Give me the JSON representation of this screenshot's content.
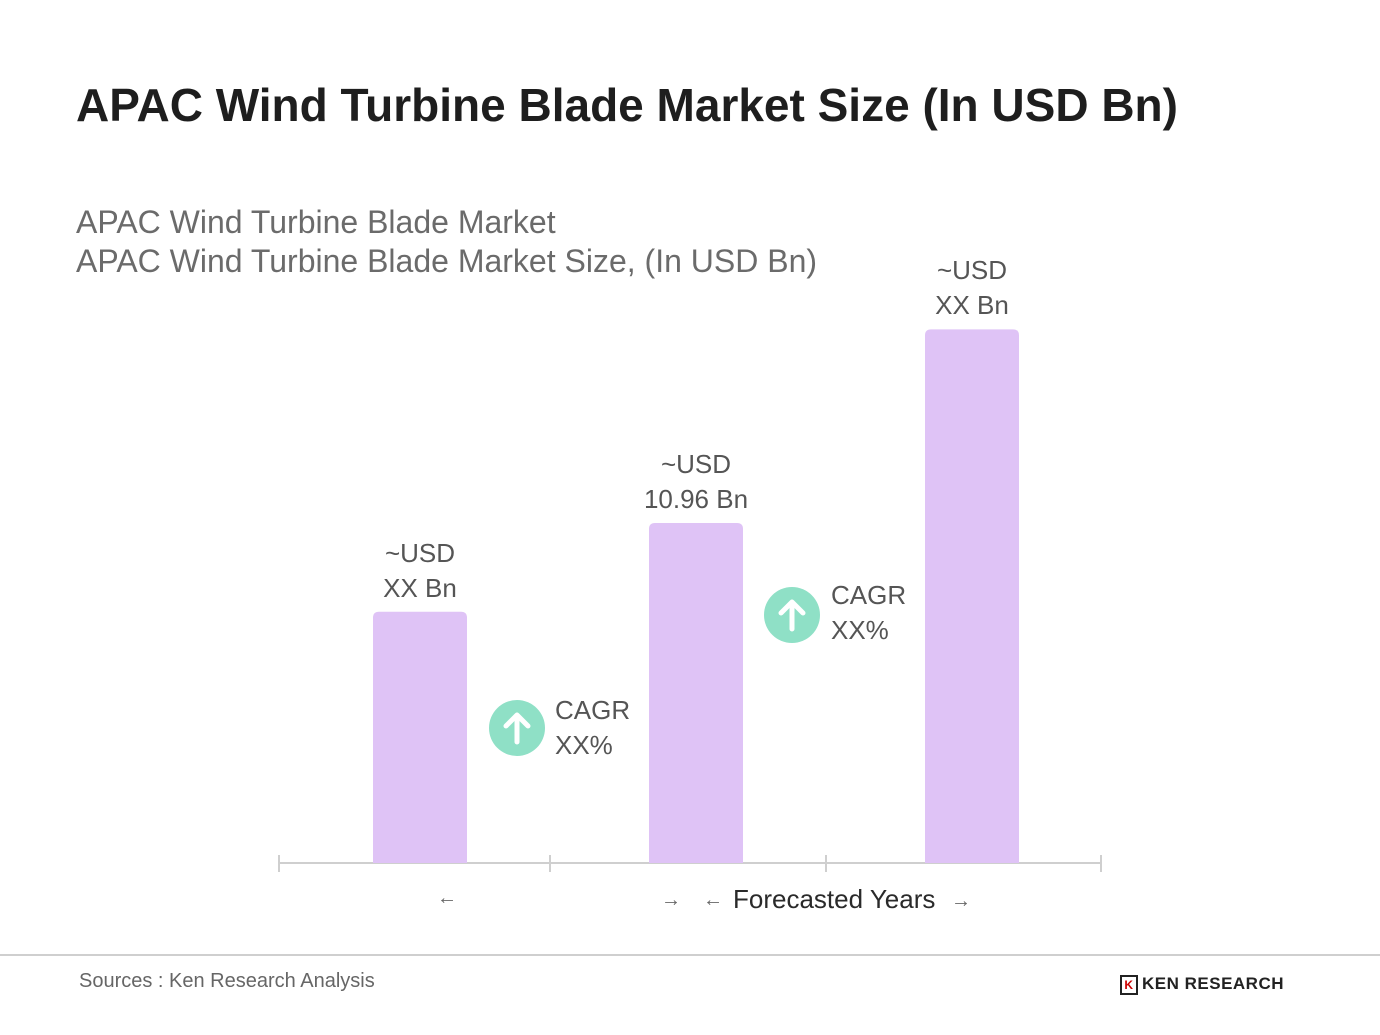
{
  "title": "APAC Wind Turbine Blade Market Size (In USD Bn)",
  "subtitle1": "APAC Wind Turbine Blade Market",
  "subtitle2": "APAC Wind Turbine Blade Market Size, (In USD Bn)",
  "chart_data": {
    "type": "bar",
    "title": "APAC Wind Turbine Blade Market Size, (In USD Bn)",
    "categories": [
      "",
      "",
      ""
    ],
    "values": [
      8.1,
      10.96,
      17.2
    ],
    "value_labels": [
      {
        "line1": "~USD",
        "line2": "XX Bn"
      },
      {
        "line1": "~USD",
        "line2": "10.96 Bn"
      },
      {
        "line1": "~USD",
        "line2": "XX Bn"
      }
    ],
    "bar_color": "#dfc3f6",
    "ylim": [
      0,
      17.6
    ],
    "annotations": [
      {
        "line1": "CAGR",
        "line2": "XX%",
        "icon": "arrow-up-icon"
      },
      {
        "line1": "CAGR",
        "line2": "XX%",
        "icon": "arrow-up-icon"
      }
    ],
    "xlabel_forecast": "Forecasted Years",
    "accent_color": "#8fe0c6"
  },
  "footer": {
    "source": "Sources : Ken Research Analysis",
    "logo": "KEN RESEARCH"
  }
}
